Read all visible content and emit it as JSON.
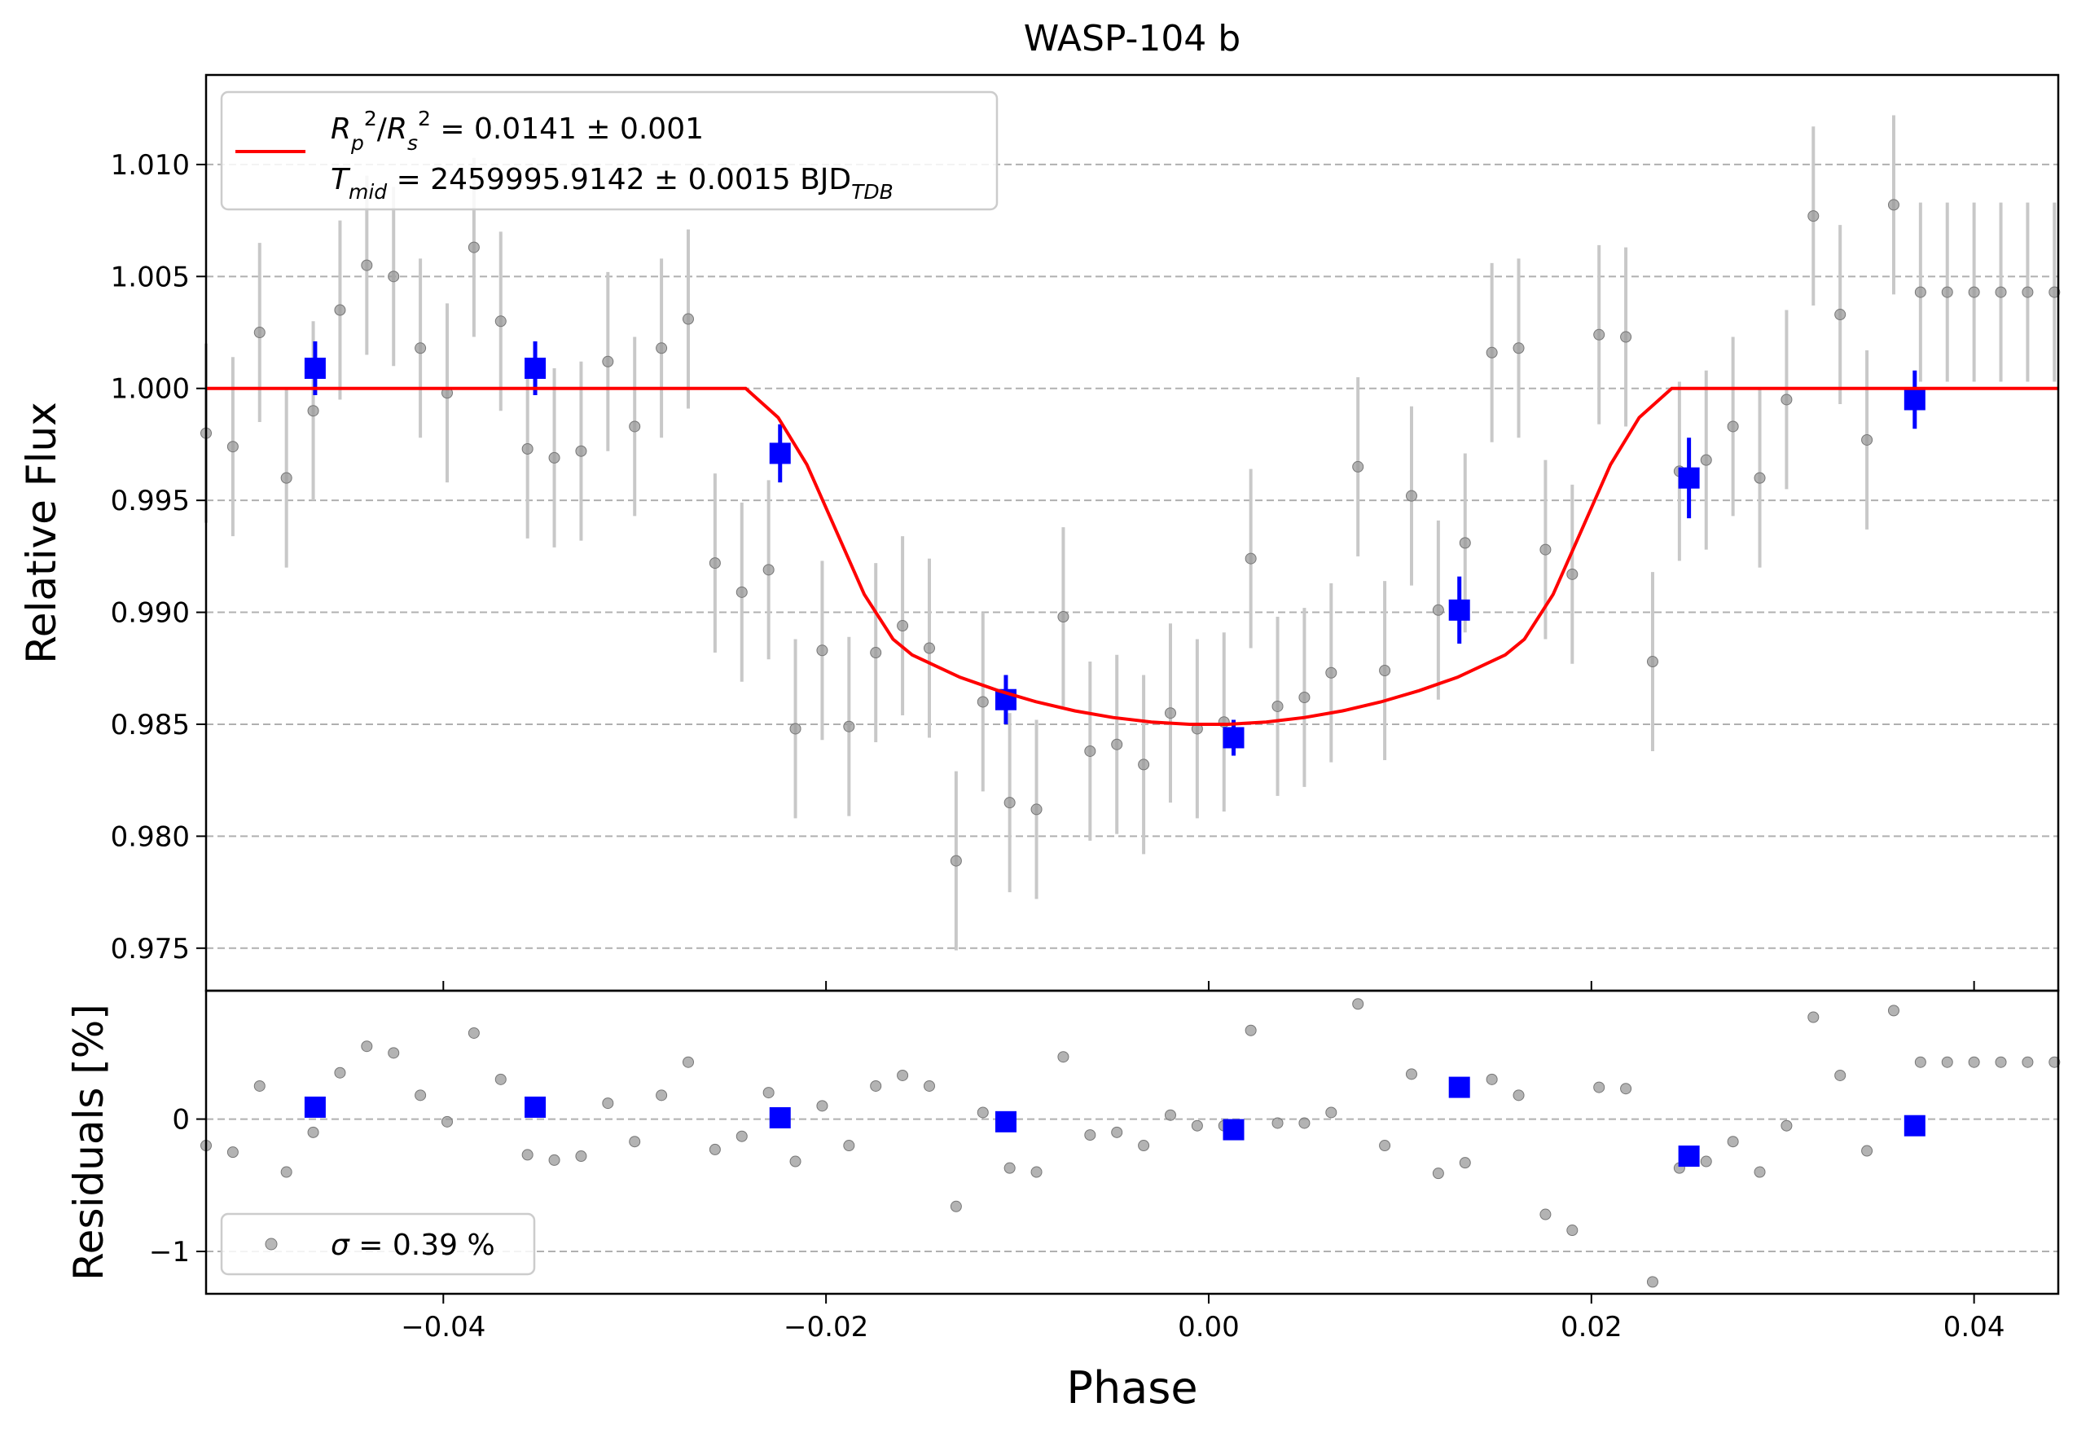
{
  "chart_data": {
    "type": "scatter",
    "title": "WASP-104 b",
    "xlabel": "Phase",
    "ylabel": "Relative Flux",
    "residuals_ylabel": "Residuals [%]",
    "xlim": [
      -0.0524,
      0.0444
    ],
    "ylim": [
      0.9731,
      1.014
    ],
    "residuals_ylim": [
      -1.32,
      0.97
    ],
    "grid": "horizontal dashed",
    "legend_placement": "upper-left",
    "residuals_legend_placement": "lower-left",
    "x_ticks": [
      {
        "value": -0.04,
        "label": "−0.04"
      },
      {
        "value": -0.02,
        "label": "−0.02"
      },
      {
        "value": 0.0,
        "label": "0.00"
      },
      {
        "value": 0.02,
        "label": "0.02"
      },
      {
        "value": 0.04,
        "label": "0.04"
      }
    ],
    "y_ticks": [
      {
        "value": 0.975,
        "label": "0.975"
      },
      {
        "value": 0.98,
        "label": "0.980"
      },
      {
        "value": 0.985,
        "label": "0.985"
      },
      {
        "value": 0.99,
        "label": "0.990"
      },
      {
        "value": 0.995,
        "label": "0.995"
      },
      {
        "value": 1.0,
        "label": "1.000"
      },
      {
        "value": 1.005,
        "label": "1.005"
      },
      {
        "value": 1.01,
        "label": "1.010"
      }
    ],
    "residual_ticks": [
      {
        "value": -1,
        "label": "−1"
      },
      {
        "value": 0,
        "label": "0"
      }
    ],
    "legend": {
      "model_line1": "R_p²/R_s² = 0.0141 ± 0.001",
      "model_line2": "T_mid = 2459995.9142 ± 0.0015 BJD_TDB",
      "residual_entry": "σ = 0.39 %"
    },
    "colors": {
      "model": "#ff0000",
      "binned": "#0000ff",
      "unbinned": "#999999",
      "errorbar": "#c8c8c8",
      "grid": "#b0b0b0"
    },
    "model": {
      "name": "transit model",
      "x": [
        -0.0524,
        -0.0242,
        -0.0225,
        -0.021,
        -0.0195,
        -0.018,
        -0.0165,
        -0.0155,
        -0.0145,
        -0.013,
        -0.011,
        -0.009,
        -0.007,
        -0.005,
        -0.003,
        -0.001,
        0.0,
        0.001,
        0.003,
        0.005,
        0.007,
        0.009,
        0.011,
        0.013,
        0.0145,
        0.0155,
        0.0165,
        0.018,
        0.0195,
        0.021,
        0.0225,
        0.0242,
        0.0444
      ],
      "y": [
        1.0,
        1.0,
        0.9987,
        0.9966,
        0.9937,
        0.9908,
        0.9888,
        0.9881,
        0.9877,
        0.9871,
        0.9865,
        0.986,
        0.9856,
        0.9853,
        0.9851,
        0.985,
        0.985,
        0.985,
        0.9851,
        0.9853,
        0.9856,
        0.986,
        0.9865,
        0.9871,
        0.9877,
        0.9881,
        0.9888,
        0.9908,
        0.9937,
        0.9966,
        0.9987,
        1.0,
        1.0
      ]
    },
    "unbinned": {
      "name": "unbinned",
      "x": [
        -0.0524,
        -0.051,
        -0.0496,
        -0.0482,
        -0.0468,
        -0.0454,
        -0.044,
        -0.0426,
        -0.0412,
        -0.0398,
        -0.0384,
        -0.037,
        -0.0356,
        -0.0342,
        -0.0328,
        -0.0314,
        -0.03,
        -0.0286,
        -0.0272,
        -0.0258,
        -0.0244,
        -0.023,
        -0.0216,
        -0.0202,
        -0.0188,
        -0.0174,
        -0.016,
        -0.0146,
        -0.0132,
        -0.0118,
        -0.0104,
        -0.009,
        -0.0076,
        -0.0062,
        -0.0048,
        -0.0034,
        -0.002,
        -0.0006,
        0.0008,
        0.0022,
        0.0036,
        0.005,
        0.0064,
        0.0078,
        0.0092,
        0.0106,
        0.012,
        0.0134,
        0.0148,
        0.0162,
        0.0176,
        0.019,
        0.0204,
        0.0218,
        0.0232,
        0.0246,
        0.026,
        0.0274,
        0.0288,
        0.0302,
        0.0316,
        0.033,
        0.0344,
        0.0358,
        0.0372,
        0.0386,
        0.04,
        0.0414,
        0.0428,
        0.0442
      ],
      "y": [
        0.998,
        0.9974,
        1.0025,
        0.996,
        0.999,
        1.0035,
        1.0055,
        1.005,
        1.0018,
        0.9998,
        1.0063,
        1.003,
        0.9973,
        0.9969,
        0.9972,
        1.0012,
        0.9983,
        1.0018,
        1.0031,
        0.9922,
        0.9909,
        0.9919,
        0.9848,
        0.9883,
        0.9849,
        0.9882,
        0.9894,
        0.9884,
        0.9789,
        0.986,
        0.9815,
        0.9812,
        0.9898,
        0.9838,
        0.9841,
        0.9832,
        0.9855,
        0.9848,
        0.9851,
        0.9924,
        0.9858,
        0.9862,
        0.9873,
        0.9965,
        0.9874,
        0.9952,
        0.9901,
        0.9931,
        1.0016,
        1.0018,
        0.9928,
        0.9917,
        1.0024,
        1.0023,
        0.9878,
        0.9963,
        0.9968,
        0.9983,
        0.996,
        0.9995,
        1.0077,
        1.0033,
        0.9977,
        1.0082,
        1.0043,
        1.0043,
        1.0043,
        1.0043,
        1.0043,
        1.0043
      ],
      "yerr": 0.004
    },
    "binned": {
      "name": "binned",
      "x": [
        -0.0467,
        -0.0352,
        -0.0224,
        -0.0106,
        0.0013,
        0.0131,
        0.0251,
        0.0369
      ],
      "y": [
        1.0009,
        1.0009,
        0.9971,
        0.9861,
        0.9844,
        0.9901,
        0.996,
        0.9995
      ],
      "yerr": [
        0.0012,
        0.0012,
        0.0013,
        0.0011,
        0.0008,
        0.0015,
        0.0018,
        0.0013
      ]
    },
    "residuals_unbinned": {
      "name": "unbinned residuals",
      "x": [
        -0.0524,
        -0.051,
        -0.0496,
        -0.0482,
        -0.0468,
        -0.0454,
        -0.044,
        -0.0426,
        -0.0412,
        -0.0398,
        -0.0384,
        -0.037,
        -0.0356,
        -0.0342,
        -0.0328,
        -0.0314,
        -0.03,
        -0.0286,
        -0.0272,
        -0.0258,
        -0.0244,
        -0.023,
        -0.0216,
        -0.0202,
        -0.0188,
        -0.0174,
        -0.016,
        -0.0146,
        -0.0132,
        -0.0118,
        -0.0104,
        -0.009,
        -0.0076,
        -0.0062,
        -0.0048,
        -0.0034,
        -0.002,
        -0.0006,
        0.0008,
        0.0022,
        0.0036,
        0.005,
        0.0064,
        0.0078,
        0.0092,
        0.0106,
        0.012,
        0.0134,
        0.0148,
        0.0162,
        0.0176,
        0.019,
        0.0204,
        0.0218,
        0.0232,
        0.0246,
        0.026,
        0.0274,
        0.0288,
        0.0302,
        0.0316,
        0.033,
        0.0344,
        0.0358,
        0.0372,
        0.0386,
        0.04,
        0.0414,
        0.0428,
        0.0442
      ],
      "y": [
        -0.2,
        -0.25,
        0.25,
        -0.4,
        -0.1,
        0.35,
        0.55,
        0.5,
        0.18,
        -0.02,
        0.65,
        0.3,
        -0.27,
        -0.31,
        -0.28,
        0.12,
        -0.17,
        0.18,
        0.43,
        -0.23,
        -0.13,
        0.2,
        -0.32,
        0.1,
        -0.2,
        0.25,
        0.33,
        0.25,
        -0.66,
        0.05,
        -0.37,
        -0.4,
        0.47,
        -0.12,
        -0.1,
        -0.2,
        0.03,
        -0.05,
        -0.05,
        0.67,
        -0.03,
        -0.03,
        0.05,
        0.87,
        -0.2,
        0.34,
        -0.41,
        -0.33,
        0.3,
        0.18,
        -0.72,
        -0.84,
        0.24,
        0.23,
        -1.23,
        -0.37,
        -0.32,
        -0.17,
        -0.4,
        -0.05,
        0.77,
        0.33,
        -0.24,
        0.82,
        0.43,
        0.43,
        0.43,
        0.43,
        0.43,
        0.43
      ]
    },
    "residuals_binned": {
      "name": "binned residuals",
      "x": [
        -0.0467,
        -0.0352,
        -0.0224,
        -0.0106,
        0.0013,
        0.0131,
        0.0251,
        0.0369
      ],
      "y": [
        0.09,
        0.09,
        0.01,
        -0.02,
        -0.08,
        0.24,
        -0.28,
        -0.05
      ]
    }
  }
}
